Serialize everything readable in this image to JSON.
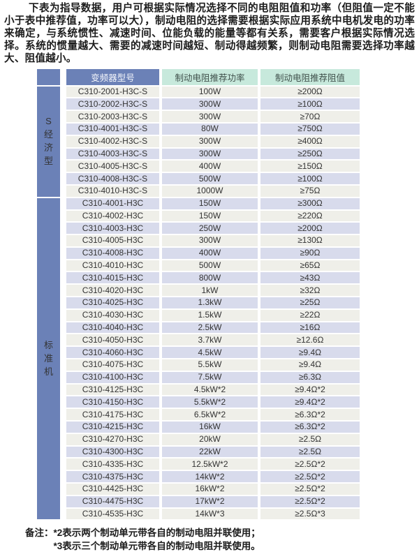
{
  "intro_paragraph": "下表为指导数据，用户可根据实际情况选择不同的电阻阻值和功率（但阻值一定不能小于表中推荐值，功率可以大），制动电阻的选择需要根据实际应用系统中电机发电的功率来确定，与系统惯性、减速时间、位能负载的能量等都有关系，需要客户根据实际情况选择。系统的惯量越大、需要的减速时间越短、制动得越频繁，则制动电阻需要选择功率越大、阻值越小。",
  "colors": {
    "header_blue": "#6b81b7",
    "header_green": "#c7e9dc",
    "row_gray": "#efefe9",
    "row_lavender": "#d8dbec",
    "section_blue": "#6b81b7"
  },
  "table": {
    "headers": {
      "model": "变频器型号",
      "power": "制动电阻推荐功率",
      "resistance": "制动电阻推荐阻值"
    },
    "sections": [
      {
        "id": "economy",
        "label": "S经济型",
        "rows": [
          {
            "model": "C310-2001-H3C-S",
            "power": "100W",
            "resistance": "≥200Ω"
          },
          {
            "model": "C310-2002-H3C-S",
            "power": "300W",
            "resistance": "≥100Ω"
          },
          {
            "model": "C310-2003-H3C-S",
            "power": "300W",
            "resistance": "≥70Ω"
          },
          {
            "model": "C310-4001-H3C-S",
            "power": "80W",
            "resistance": "≥750Ω"
          },
          {
            "model": "C310-4002-H3C-S",
            "power": "300W",
            "resistance": "≥400Ω"
          },
          {
            "model": "C310-4003-H3C-S",
            "power": "300W",
            "resistance": "≥250Ω"
          },
          {
            "model": "C310-4005-H3C-S",
            "power": "400W",
            "resistance": "≥150Ω"
          },
          {
            "model": "C310-4008-H3C-S",
            "power": "500W",
            "resistance": "≥100Ω"
          },
          {
            "model": "C310-4010-H3C-S",
            "power": "1000W",
            "resistance": "≥75Ω"
          }
        ]
      },
      {
        "id": "standard",
        "label": "标准机",
        "rows": [
          {
            "model": "C310-4001-H3C",
            "power": "150W",
            "resistance": "≥300Ω"
          },
          {
            "model": "C310-4002-H3C",
            "power": "150W",
            "resistance": "≥220Ω"
          },
          {
            "model": "C310-4003-H3C",
            "power": "250W",
            "resistance": "≥200Ω"
          },
          {
            "model": "C310-4005-H3C",
            "power": "300W",
            "resistance": "≥130Ω"
          },
          {
            "model": "C310-4008-H3C",
            "power": "400W",
            "resistance": "≥90Ω"
          },
          {
            "model": "C310-4010-H3C",
            "power": "500W",
            "resistance": "≥65Ω"
          },
          {
            "model": "C310-4015-H3C",
            "power": "800W",
            "resistance": "≥43Ω"
          },
          {
            "model": "C310-4020-H3C",
            "power": "1kW",
            "resistance": "≥32Ω"
          },
          {
            "model": "C310-4025-H3C",
            "power": "1.3kW",
            "resistance": "≥25Ω"
          },
          {
            "model": "C310-4030-H3C",
            "power": "1.5kW",
            "resistance": "≥22Ω"
          },
          {
            "model": "C310-4040-H3C",
            "power": "2.5kW",
            "resistance": "≥16Ω"
          },
          {
            "model": "C310-4050-H3C",
            "power": "3.7kW",
            "resistance": "≥12.6Ω"
          },
          {
            "model": "C310-4060-H3C",
            "power": "4.5kW",
            "resistance": "≥9.4Ω"
          },
          {
            "model": "C310-4075-H3C",
            "power": "5.5kW",
            "resistance": "≥9.4Ω"
          },
          {
            "model": "C310-4100-H3C",
            "power": "7.5kW",
            "resistance": "≥6.3Ω"
          },
          {
            "model": "C310-4125-H3C",
            "power": "4.5kW*2",
            "resistance": "≥9.4Ω*2"
          },
          {
            "model": "C310-4150-H3C",
            "power": "5.5kW*2",
            "resistance": "≥9.4Ω*2"
          },
          {
            "model": "C310-4175-H3C",
            "power": "6.5kW*2",
            "resistance": "≥6.3Ω*2"
          },
          {
            "model": "C310-4215-H3C",
            "power": "16kW",
            "resistance": "≥6.3Ω*2"
          },
          {
            "model": "C310-4270-H3C",
            "power": "20kW",
            "resistance": "≥2.5Ω"
          },
          {
            "model": "C310-4300-H3C",
            "power": "22kW",
            "resistance": "≥2.5Ω"
          },
          {
            "model": "C310-4335-H3C",
            "power": "12.5kW*2",
            "resistance": "≥2.5Ω*2"
          },
          {
            "model": "C310-4375-H3C",
            "power": "14kW*2",
            "resistance": "≥2.5Ω*2"
          },
          {
            "model": "C310-4425-H3C",
            "power": "16kW*2",
            "resistance": "≥2.5Ω*2"
          },
          {
            "model": "C310-4475-H3C",
            "power": "17kW*2",
            "resistance": "≥2.5Ω*2"
          },
          {
            "model": "C310-4535-H3C",
            "power": "14kW*3",
            "resistance": "≥2.5Ω*3"
          }
        ]
      }
    ]
  },
  "notes": {
    "prefix": "备注：",
    "line1": "*2表示两个制动单元带各自的制动电阻并联使用；",
    "line2": "*3表示三个制动单元带各自的制动电阻并联使用。"
  }
}
